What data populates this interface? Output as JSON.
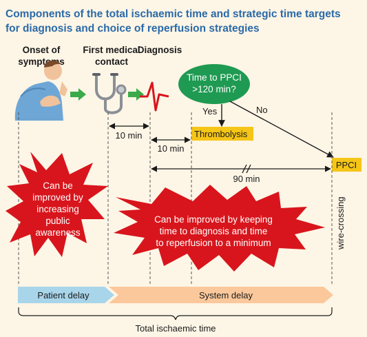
{
  "title_line1": "Components of the total ischaemic time and strategic time targets",
  "title_line2": "for diagnosis and choice of reperfusion strategies",
  "stages": {
    "onset_line1": "Onset of",
    "onset_line2": "symptoms",
    "fmc_line1": "First medical",
    "fmc_line2": "contact",
    "diagnosis": "Diagnosis"
  },
  "decision": {
    "line1": "Time to PPCI",
    "line2": ">120 min?",
    "yes": "Yes",
    "no": "No"
  },
  "outcomes": {
    "thrombolysis": "Thrombolysis",
    "ppci": "PPCI"
  },
  "intervals": {
    "fmc_to_diag": "10 min",
    "diag_to_lysis": "10 min",
    "diag_to_ppci": "90 min"
  },
  "wire_crossing": "wire-crossing",
  "bursts": {
    "left": [
      "Can be",
      "improved by",
      "increasing",
      "public",
      "awareness"
    ],
    "right": [
      "Can be improved by keeping",
      "time to diagnosis and time",
      "to reperfusion to a minimum"
    ]
  },
  "delays": {
    "patient": "Patient delay",
    "system": "System delay",
    "total": "Total ischaemic time"
  },
  "colors": {
    "title": "#2a6aa8",
    "burst_red": "#d8151c",
    "decision_green": "#1f9a52",
    "highlight_yellow": "#f5c518",
    "patient_blue": "#a9d5ea",
    "system_orange": "#fbc89b",
    "green_arrow": "#3aaa4a",
    "ecg_red": "#d8151c"
  },
  "icons": [
    "patient-icon",
    "stethoscope-icon",
    "ecg-icon"
  ]
}
